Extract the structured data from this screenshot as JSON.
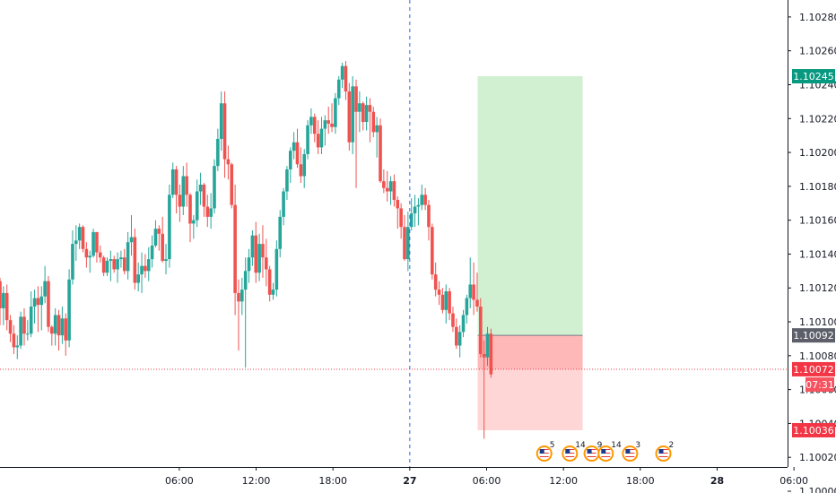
{
  "chart_data": {
    "type": "candlestick",
    "y_axis": {
      "range": [
        1.1,
        1.1029
      ],
      "ticks": [
        "1.10280",
        "1.10260",
        "1.10240",
        "1.10220",
        "1.10200",
        "1.10180",
        "1.10160",
        "1.10140",
        "1.10120",
        "1.10100",
        "1.10080",
        "1.10060",
        "1.10040",
        "1.10020",
        "1.10000"
      ]
    },
    "x_axis": {
      "range_hours": [
        -8,
        53.5
      ],
      "ticks": [
        {
          "label": "06:00",
          "hour": 6,
          "bold": false
        },
        {
          "label": "12:00",
          "hour": 12,
          "bold": false
        },
        {
          "label": "18:00",
          "hour": 18,
          "bold": false
        },
        {
          "label": "27",
          "hour": 24,
          "bold": true
        },
        {
          "label": "06:00",
          "hour": 30,
          "bold": false
        },
        {
          "label": "12:00",
          "hour": 36,
          "bold": false
        },
        {
          "label": "18:00",
          "hour": 42,
          "bold": false
        },
        {
          "label": "28",
          "hour": 48,
          "bold": true
        },
        {
          "label": "06:00",
          "hour": 54,
          "bold": false
        }
      ]
    },
    "candles": [
      [
        1.10124,
        1.10126,
        1.10098,
        1.10108
      ],
      [
        1.10108,
        1.10121,
        1.10098,
        1.10117
      ],
      [
        1.10117,
        1.10122,
        1.10095,
        1.10101
      ],
      [
        1.10101,
        1.10104,
        1.10088,
        1.10093
      ],
      [
        1.10093,
        1.10098,
        1.10081,
        1.10085
      ],
      [
        1.10085,
        1.10092,
        1.10078,
        1.10086
      ],
      [
        1.10086,
        1.10106,
        1.10084,
        1.10103
      ],
      [
        1.10103,
        1.10108,
        1.10086,
        1.10093
      ],
      [
        1.10093,
        1.10101,
        1.10089,
        1.10093
      ],
      [
        1.10093,
        1.10118,
        1.10091,
        1.10109
      ],
      [
        1.10109,
        1.10119,
        1.10099,
        1.10114
      ],
      [
        1.10114,
        1.10121,
        1.10094,
        1.1011
      ],
      [
        1.1011,
        1.10121,
        1.10095,
        1.10115
      ],
      [
        1.10115,
        1.10133,
        1.10111,
        1.10124
      ],
      [
        1.10124,
        1.10127,
        1.10094,
        1.10097
      ],
      [
        1.10097,
        1.10098,
        1.10086,
        1.10093
      ],
      [
        1.10093,
        1.10108,
        1.10086,
        1.10104
      ],
      [
        1.10104,
        1.10107,
        1.10083,
        1.10092
      ],
      [
        1.10092,
        1.10109,
        1.10087,
        1.10102
      ],
      [
        1.10102,
        1.10105,
        1.1008,
        1.10089
      ],
      [
        1.10089,
        1.10131,
        1.10085,
        1.10125
      ],
      [
        1.10125,
        1.10154,
        1.10122,
        1.10146
      ],
      [
        1.10146,
        1.10157,
        1.10136,
        1.10148
      ],
      [
        1.10148,
        1.10158,
        1.10143,
        1.10156
      ],
      [
        1.10156,
        1.10157,
        1.10141,
        1.10143
      ],
      [
        1.10143,
        1.10147,
        1.10132,
        1.10138
      ],
      [
        1.10138,
        1.10142,
        1.10129,
        1.10139
      ],
      [
        1.10139,
        1.10155,
        1.10138,
        1.10153
      ],
      [
        1.10153,
        1.10153,
        1.10135,
        1.10141
      ],
      [
        1.10141,
        1.10145,
        1.10135,
        1.10138
      ],
      [
        1.10138,
        1.10139,
        1.10127,
        1.10129
      ],
      [
        1.10129,
        1.10138,
        1.10127,
        1.10136
      ],
      [
        1.10136,
        1.10142,
        1.10124,
        1.10137
      ],
      [
        1.10137,
        1.10139,
        1.10129,
        1.10131
      ],
      [
        1.10131,
        1.10141,
        1.10123,
        1.10137
      ],
      [
        1.10137,
        1.10142,
        1.10132,
        1.10138
      ],
      [
        1.10138,
        1.10143,
        1.10128,
        1.1013
      ],
      [
        1.1013,
        1.10153,
        1.10125,
        1.10147
      ],
      [
        1.10147,
        1.10163,
        1.10139,
        1.1015
      ],
      [
        1.1015,
        1.10155,
        1.10119,
        1.10123
      ],
      [
        1.10123,
        1.10135,
        1.10118,
        1.10128
      ],
      [
        1.10128,
        1.10141,
        1.10117,
        1.10133
      ],
      [
        1.10133,
        1.1014,
        1.10126,
        1.1013
      ],
      [
        1.1013,
        1.10144,
        1.10124,
        1.10137
      ],
      [
        1.10137,
        1.10151,
        1.10132,
        1.10145
      ],
      [
        1.10145,
        1.1016,
        1.10144,
        1.10155
      ],
      [
        1.10155,
        1.10157,
        1.10142,
        1.10152
      ],
      [
        1.10152,
        1.10162,
        1.10135,
        1.10136
      ],
      [
        1.10136,
        1.10146,
        1.10128,
        1.10137
      ],
      [
        1.10137,
        1.10181,
        1.10132,
        1.10175
      ],
      [
        1.10175,
        1.10194,
        1.10173,
        1.1019
      ],
      [
        1.1019,
        1.10192,
        1.10164,
        1.10175
      ],
      [
        1.10175,
        1.10181,
        1.10159,
        1.10168
      ],
      [
        1.10168,
        1.10192,
        1.10163,
        1.10186
      ],
      [
        1.10186,
        1.10194,
        1.10168,
        1.10175
      ],
      [
        1.10175,
        1.10176,
        1.10147,
        1.10158
      ],
      [
        1.10158,
        1.10163,
        1.10149,
        1.1016
      ],
      [
        1.1016,
        1.10184,
        1.10156,
        1.10177
      ],
      [
        1.10177,
        1.10188,
        1.10169,
        1.10181
      ],
      [
        1.10181,
        1.10182,
        1.10162,
        1.10168
      ],
      [
        1.10168,
        1.10175,
        1.10156,
        1.10162
      ],
      [
        1.10162,
        1.10176,
        1.10155,
        1.10167
      ],
      [
        1.10167,
        1.10196,
        1.10164,
        1.10192
      ],
      [
        1.10192,
        1.10214,
        1.10189,
        1.10208
      ],
      [
        1.10208,
        1.10236,
        1.10201,
        1.10229
      ],
      [
        1.10229,
        1.10236,
        1.10185,
        1.10196
      ],
      [
        1.10196,
        1.10204,
        1.10184,
        1.10193
      ],
      [
        1.10193,
        1.10194,
        1.10167,
        1.10169
      ],
      [
        1.10169,
        1.10181,
        1.10104,
        1.10117
      ],
      [
        1.10117,
        1.10125,
        1.10083,
        1.10112
      ],
      [
        1.10112,
        1.10126,
        1.10104,
        1.10119
      ],
      [
        1.10119,
        1.10138,
        1.10073,
        1.1013
      ],
      [
        1.1013,
        1.10143,
        1.10123,
        1.10138
      ],
      [
        1.10138,
        1.10154,
        1.10133,
        1.10151
      ],
      [
        1.10151,
        1.10159,
        1.10123,
        1.10129
      ],
      [
        1.10129,
        1.10152,
        1.10124,
        1.10146
      ],
      [
        1.10146,
        1.10157,
        1.10126,
        1.10138
      ],
      [
        1.10138,
        1.10149,
        1.10121,
        1.10131
      ],
      [
        1.10131,
        1.10133,
        1.10112,
        1.10116
      ],
      [
        1.10116,
        1.10123,
        1.10113,
        1.10119
      ],
      [
        1.10119,
        1.10148,
        1.10115,
        1.10143
      ],
      [
        1.10143,
        1.10166,
        1.10138,
        1.10162
      ],
      [
        1.10162,
        1.10179,
        1.10157,
        1.10177
      ],
      [
        1.10177,
        1.10192,
        1.10172,
        1.1019
      ],
      [
        1.1019,
        1.10203,
        1.10182,
        1.10201
      ],
      [
        1.10201,
        1.10212,
        1.10196,
        1.10206
      ],
      [
        1.10206,
        1.10214,
        1.10191,
        1.10193
      ],
      [
        1.10193,
        1.10203,
        1.10182,
        1.10186
      ],
      [
        1.10186,
        1.10202,
        1.10179,
        1.10199
      ],
      [
        1.10199,
        1.10219,
        1.10196,
        1.10216
      ],
      [
        1.10216,
        1.10226,
        1.10211,
        1.10221
      ],
      [
        1.10221,
        1.10223,
        1.10206,
        1.10211
      ],
      [
        1.10211,
        1.10219,
        1.10199,
        1.10203
      ],
      [
        1.10203,
        1.10221,
        1.10199,
        1.10214
      ],
      [
        1.10214,
        1.10222,
        1.10204,
        1.10219
      ],
      [
        1.10219,
        1.10227,
        1.10211,
        1.10217
      ],
      [
        1.10217,
        1.10229,
        1.10212,
        1.10215
      ],
      [
        1.10215,
        1.10235,
        1.10211,
        1.10232
      ],
      [
        1.10232,
        1.10245,
        1.10228,
        1.10243
      ],
      [
        1.10243,
        1.10253,
        1.10238,
        1.10251
      ],
      [
        1.10251,
        1.10254,
        1.10231,
        1.10236
      ],
      [
        1.10236,
        1.10241,
        1.10201,
        1.10206
      ],
      [
        1.10206,
        1.10245,
        1.10199,
        1.10239
      ],
      [
        1.10239,
        1.10243,
        1.10179,
        1.10224
      ],
      [
        1.10224,
        1.10236,
        1.10212,
        1.10229
      ],
      [
        1.10229,
        1.1023,
        1.10213,
        1.10218
      ],
      [
        1.10218,
        1.10233,
        1.10213,
        1.10228
      ],
      [
        1.10228,
        1.10232,
        1.10206,
        1.10224
      ],
      [
        1.10224,
        1.10227,
        1.10209,
        1.10212
      ],
      [
        1.10212,
        1.10221,
        1.10197,
        1.10216
      ],
      [
        1.10216,
        1.1022,
        1.10182,
        1.10183
      ],
      [
        1.10183,
        1.1019,
        1.10176,
        1.10179
      ],
      [
        1.10179,
        1.10189,
        1.10171,
        1.10177
      ],
      [
        1.10177,
        1.10186,
        1.10169,
        1.10183
      ],
      [
        1.10183,
        1.10187,
        1.10168,
        1.10172
      ],
      [
        1.10172,
        1.10174,
        1.10155,
        1.10167
      ],
      [
        1.10167,
        1.1017,
        1.10149,
        1.10156
      ],
      [
        1.10156,
        1.10163,
        1.10136,
        1.10137
      ],
      [
        1.10137,
        1.10165,
        1.1013,
        1.10156
      ],
      [
        1.10156,
        1.10173,
        1.10154,
        1.10164
      ],
      [
        1.10164,
        1.10175,
        1.10156,
        1.10168
      ],
      [
        1.10168,
        1.10173,
        1.10157,
        1.10169
      ],
      [
        1.10169,
        1.10181,
        1.10166,
        1.10175
      ],
      [
        1.10175,
        1.10179,
        1.10166,
        1.10169
      ],
      [
        1.10169,
        1.10172,
        1.10148,
        1.10156
      ],
      [
        1.10156,
        1.10158,
        1.10125,
        1.10128
      ],
      [
        1.10128,
        1.10135,
        1.10115,
        1.10119
      ],
      [
        1.10119,
        1.10124,
        1.1011,
        1.10116
      ],
      [
        1.10116,
        1.1012,
        1.10105,
        1.10107
      ],
      [
        1.10107,
        1.10122,
        1.10099,
        1.10118
      ],
      [
        1.10118,
        1.1012,
        1.10101,
        1.10105
      ],
      [
        1.10105,
        1.10109,
        1.10094,
        1.10097
      ],
      [
        1.10097,
        1.10102,
        1.10084,
        1.10086
      ],
      [
        1.10086,
        1.10098,
        1.10079,
        1.10094
      ],
      [
        1.10094,
        1.10107,
        1.10091,
        1.10104
      ],
      [
        1.10104,
        1.10116,
        1.10099,
        1.10114
      ],
      [
        1.10114,
        1.10138,
        1.10108,
        1.10122
      ],
      [
        1.10122,
        1.10135,
        1.10104,
        1.10113
      ],
      [
        1.10113,
        1.10129,
        1.10106,
        1.10109
      ],
      [
        1.10109,
        1.10114,
        1.10079,
        1.10081
      ],
      [
        1.10081,
        1.10089,
        1.10031,
        1.10079
      ],
      [
        1.10079,
        1.10097,
        1.10074,
        1.10093
      ],
      [
        1.10093,
        1.10096,
        1.10067,
        1.10069
      ]
    ],
    "reference_line": {
      "price": 1.10072
    },
    "event_line_hour": 24,
    "position": {
      "entry": 1.10092,
      "take_profit": 1.10245,
      "stop_loss": 1.10036,
      "hour_start": 29.3,
      "hour_end": 37.5
    },
    "price_tags": [
      {
        "label": "1.10245",
        "price": 1.10245,
        "color": "#089981"
      },
      {
        "label": "1.10092",
        "price": 1.10092,
        "color": "#5d606b"
      },
      {
        "label": "1.10072",
        "price": 1.10072,
        "color": "#f23645"
      },
      {
        "label": "07:31",
        "price": 1.10063,
        "color": "#f7525f"
      },
      {
        "label": "1.10036",
        "price": 1.10036,
        "color": "#f23645"
      }
    ],
    "events": [
      {
        "count": "5",
        "hour": 34.5
      },
      {
        "count": "14",
        "hour": 36.5
      },
      {
        "count": "9",
        "hour": 38.2
      },
      {
        "count": "14",
        "hour": 39.3
      },
      {
        "count": "3",
        "hour": 41.2
      },
      {
        "count": "2",
        "hour": 43.8
      }
    ],
    "colors": {
      "up": "#26a69a",
      "down": "#ef5350",
      "profit_zone": "#d1f0d1",
      "loss_zone": "#ffb8b8",
      "loss_zone_light": "#ffd6d6"
    }
  }
}
